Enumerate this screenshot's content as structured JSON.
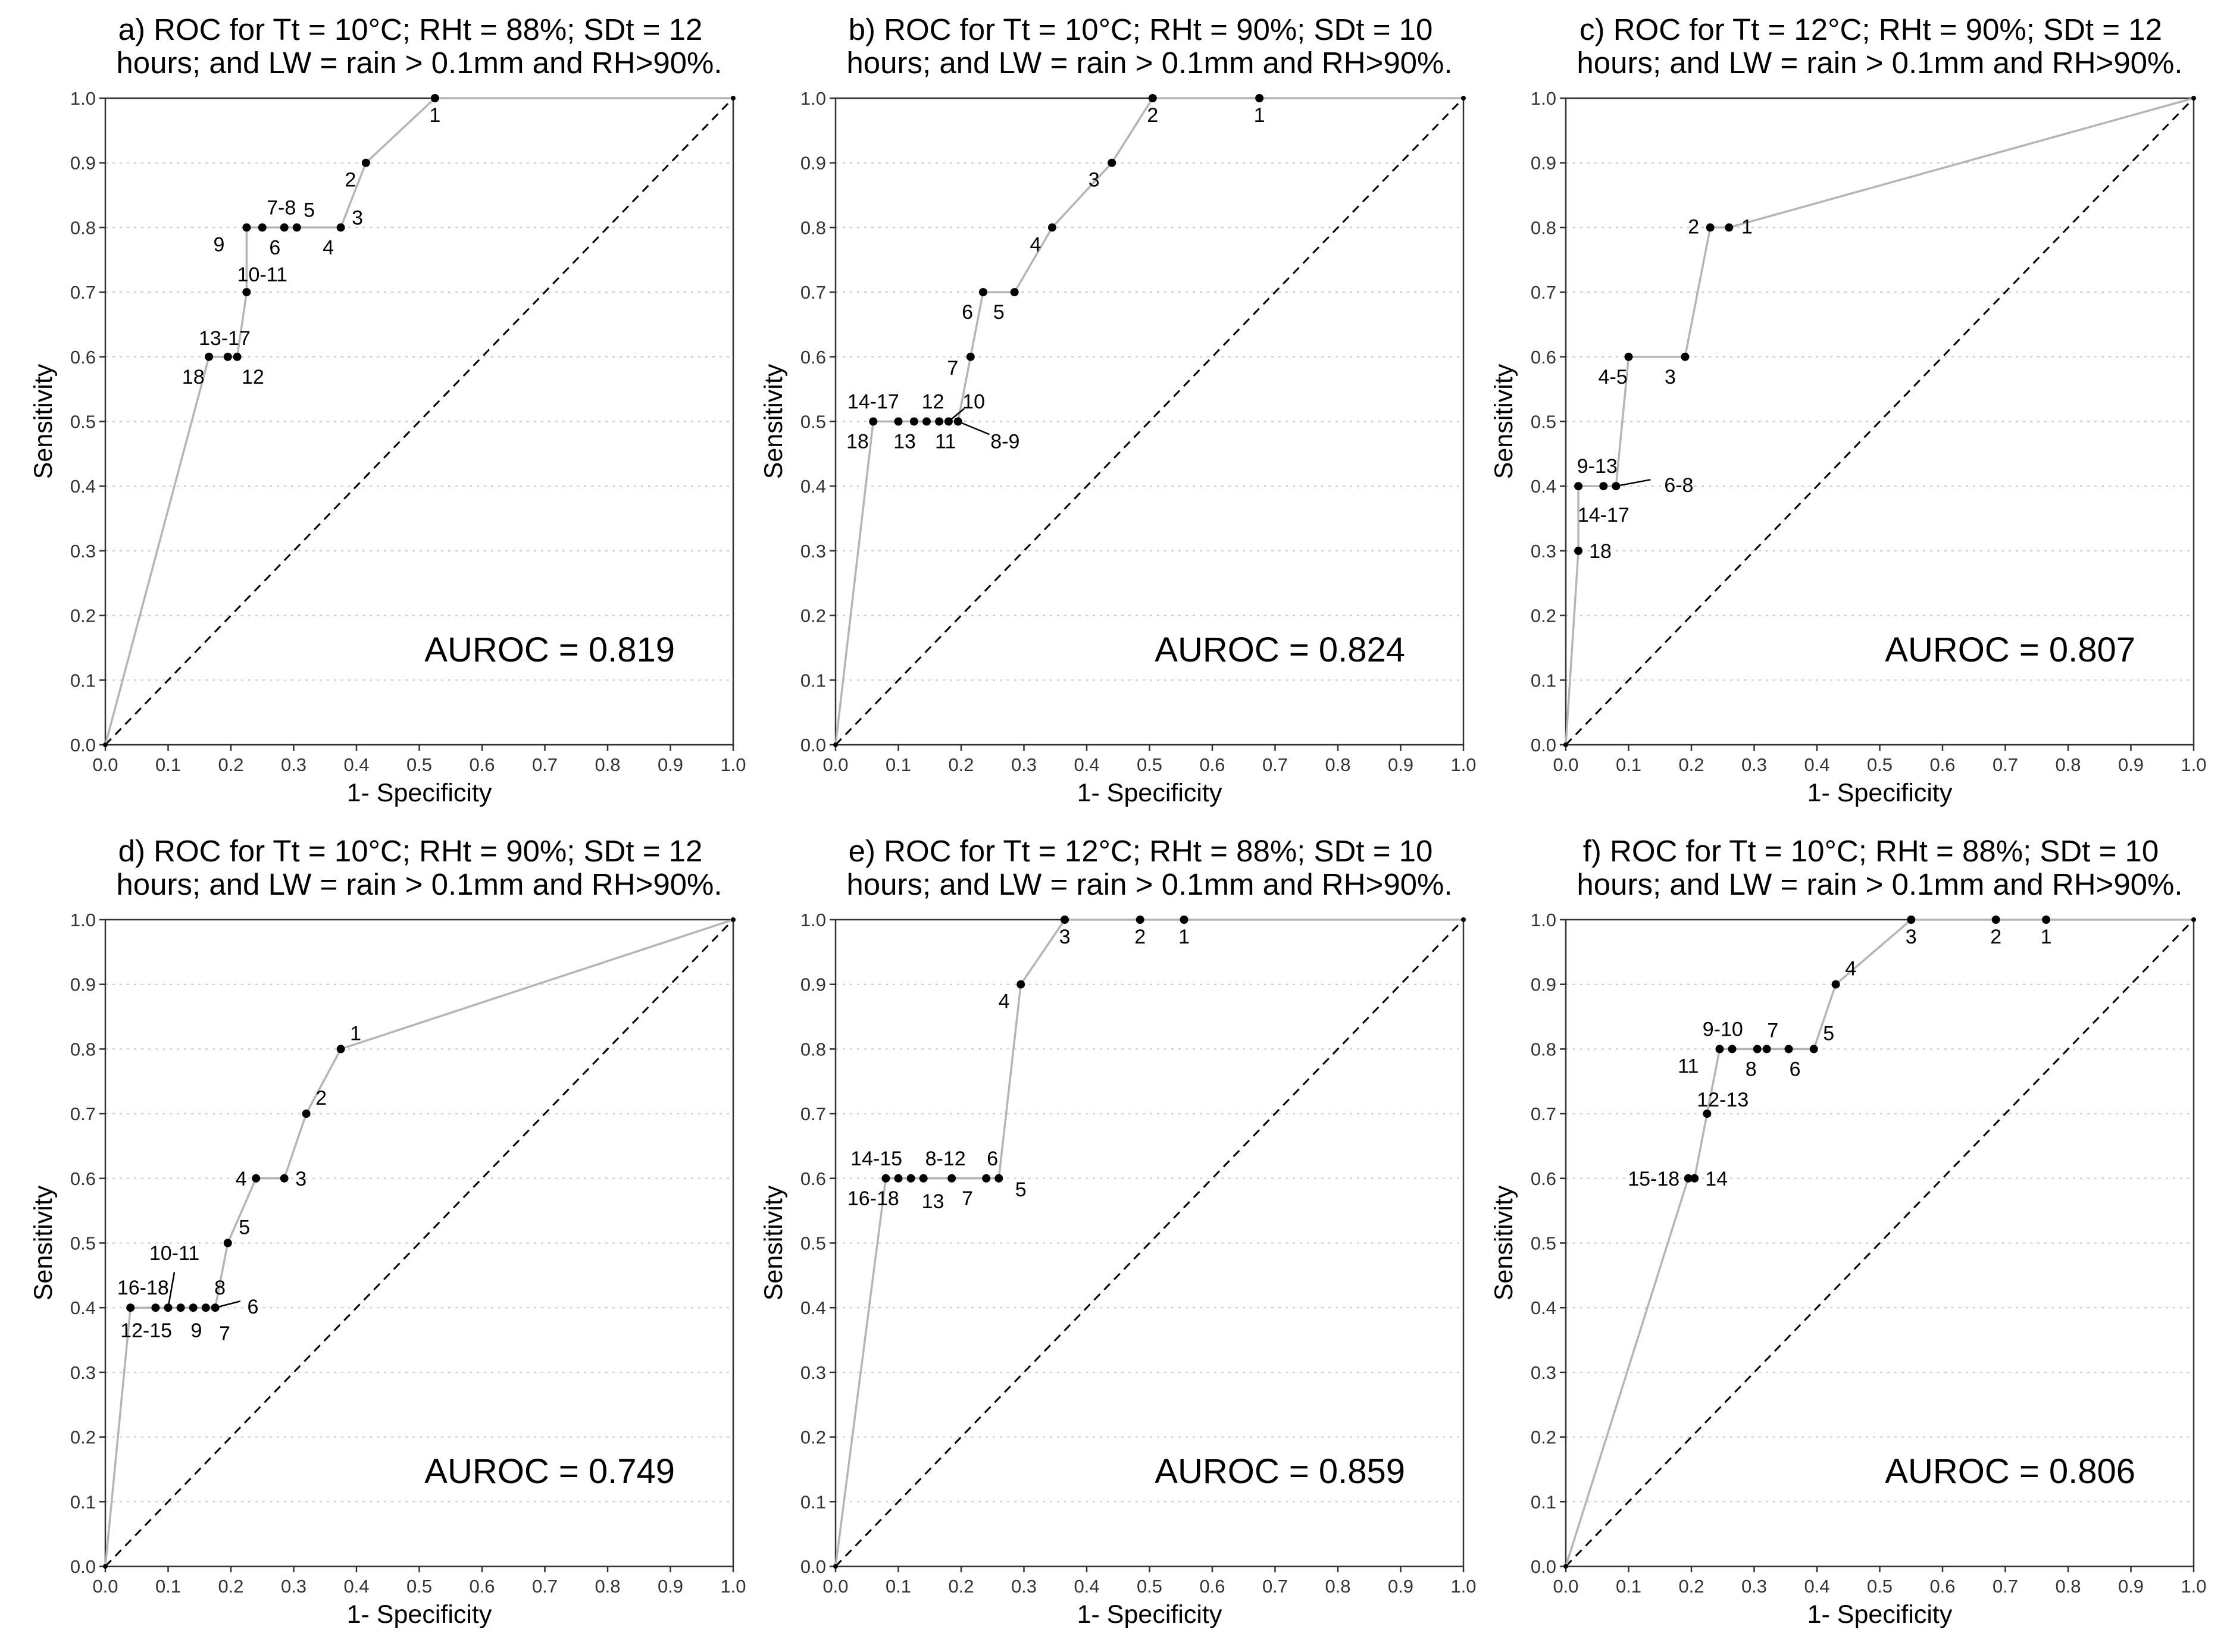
{
  "chart_data": [
    {
      "type": "line",
      "panel": "a",
      "title_line1": "a) ROC for Tt = 10°C; RHt = 88%; SDt = 12",
      "title_line2": "hours; and LW = rain > 0.1mm and RH>90%.",
      "xlabel": "1- Specificity",
      "ylabel": "Sensitivity",
      "xlim": [
        0,
        1
      ],
      "ylim": [
        0,
        1
      ],
      "xticks": [
        "0.0",
        "0.1",
        "0.2",
        "0.3",
        "0.4",
        "0.5",
        "0.6",
        "0.7",
        "0.8",
        "0.9",
        "1.0"
      ],
      "yticks": [
        "0.0",
        "0.1",
        "0.2",
        "0.3",
        "0.4",
        "0.5",
        "0.6",
        "0.7",
        "0.8",
        "0.9",
        "1.0"
      ],
      "auroc_text": "AUROC = 0.819",
      "points": [
        {
          "x": 0.0,
          "y": 0.0
        },
        {
          "x": 0.165,
          "y": 0.6
        },
        {
          "x": 0.195,
          "y": 0.6
        },
        {
          "x": 0.21,
          "y": 0.6
        },
        {
          "x": 0.225,
          "y": 0.7
        },
        {
          "x": 0.225,
          "y": 0.8
        },
        {
          "x": 0.25,
          "y": 0.8
        },
        {
          "x": 0.285,
          "y": 0.8
        },
        {
          "x": 0.305,
          "y": 0.8
        },
        {
          "x": 0.375,
          "y": 0.8
        },
        {
          "x": 0.415,
          "y": 0.9
        },
        {
          "x": 0.525,
          "y": 1.0
        },
        {
          "x": 1.0,
          "y": 1.0
        }
      ],
      "labels": [
        {
          "text": "1",
          "x": 0.525,
          "y": 1.0,
          "dx": 0,
          "dy": 40
        },
        {
          "text": "2",
          "x": 0.415,
          "y": 0.9,
          "dx": -26,
          "dy": 40
        },
        {
          "text": "3",
          "x": 0.375,
          "y": 0.8,
          "dx": 28,
          "dy": -5
        },
        {
          "text": "4",
          "x": 0.355,
          "y": 0.8,
          "dx": 0,
          "dy": 45
        },
        {
          "text": "5",
          "x": 0.32,
          "y": 0.8,
          "dx": 5,
          "dy": -18
        },
        {
          "text": "6",
          "x": 0.27,
          "y": 0.8,
          "dx": 0,
          "dy": 45
        },
        {
          "text": "7-8",
          "x": 0.285,
          "y": 0.8,
          "dx": -5,
          "dy": -22
        },
        {
          "text": "9",
          "x": 0.2,
          "y": 0.8,
          "dx": -20,
          "dy": 40
        },
        {
          "text": "10-11",
          "x": 0.25,
          "y": 0.7,
          "dx": 0,
          "dy": -18
        },
        {
          "text": "13-17",
          "x": 0.19,
          "y": 0.6,
          "dx": 0,
          "dy": -20
        },
        {
          "text": "18",
          "x": 0.14,
          "y": 0.6,
          "dx": 0,
          "dy": 45
        },
        {
          "text": "12",
          "x": 0.235,
          "y": 0.6,
          "dx": 0,
          "dy": 45
        }
      ],
      "leaders": []
    },
    {
      "type": "line",
      "panel": "b",
      "title_line1": "b) ROC for Tt = 10°C; RHt = 90%; SDt = 10",
      "title_line2": "hours; and LW = rain > 0.1mm and RH>90%.",
      "xlabel": "1- Specificity",
      "ylabel": "Sensitivity",
      "xlim": [
        0,
        1
      ],
      "ylim": [
        0,
        1
      ],
      "xticks": [
        "0.0",
        "0.1",
        "0.2",
        "0.3",
        "0.4",
        "0.5",
        "0.6",
        "0.7",
        "0.8",
        "0.9",
        "1.0"
      ],
      "yticks": [
        "0.0",
        "0.1",
        "0.2",
        "0.3",
        "0.4",
        "0.5",
        "0.6",
        "0.7",
        "0.8",
        "0.9",
        "1.0"
      ],
      "auroc_text": "AUROC = 0.824",
      "points": [
        {
          "x": 0.0,
          "y": 0.0
        },
        {
          "x": 0.06,
          "y": 0.5
        },
        {
          "x": 0.1,
          "y": 0.5
        },
        {
          "x": 0.125,
          "y": 0.5
        },
        {
          "x": 0.145,
          "y": 0.5
        },
        {
          "x": 0.165,
          "y": 0.5
        },
        {
          "x": 0.18,
          "y": 0.5
        },
        {
          "x": 0.195,
          "y": 0.5
        },
        {
          "x": 0.215,
          "y": 0.6
        },
        {
          "x": 0.235,
          "y": 0.7
        },
        {
          "x": 0.285,
          "y": 0.7
        },
        {
          "x": 0.345,
          "y": 0.8
        },
        {
          "x": 0.44,
          "y": 0.9
        },
        {
          "x": 0.505,
          "y": 1.0
        },
        {
          "x": 0.675,
          "y": 1.0
        },
        {
          "x": 1.0,
          "y": 1.0
        }
      ],
      "labels": [
        {
          "text": "1",
          "x": 0.675,
          "y": 1.0,
          "dx": 0,
          "dy": 40
        },
        {
          "text": "2",
          "x": 0.505,
          "y": 1.0,
          "dx": 0,
          "dy": 40
        },
        {
          "text": "3",
          "x": 0.44,
          "y": 0.9,
          "dx": -30,
          "dy": 40
        },
        {
          "text": "4",
          "x": 0.345,
          "y": 0.8,
          "dx": -28,
          "dy": 40
        },
        {
          "text": "5",
          "x": 0.26,
          "y": 0.7,
          "dx": 0,
          "dy": 45
        },
        {
          "text": "6",
          "x": 0.21,
          "y": 0.7,
          "dx": 0,
          "dy": 45
        },
        {
          "text": "7",
          "x": 0.215,
          "y": 0.6,
          "dx": -30,
          "dy": 30
        },
        {
          "text": "14-17",
          "x": 0.06,
          "y": 0.5,
          "dx": 0,
          "dy": -22
        },
        {
          "text": "12",
          "x": 0.155,
          "y": 0.5,
          "dx": 0,
          "dy": -22
        },
        {
          "text": "10",
          "x": 0.22,
          "y": 0.5,
          "dx": 0,
          "dy": -22
        },
        {
          "text": "18",
          "x": 0.035,
          "y": 0.5,
          "dx": 0,
          "dy": 45
        },
        {
          "text": "13",
          "x": 0.11,
          "y": 0.5,
          "dx": 0,
          "dy": 45
        },
        {
          "text": "11",
          "x": 0.175,
          "y": 0.5,
          "dx": 0,
          "dy": 45
        },
        {
          "text": "8-9",
          "x": 0.27,
          "y": 0.5,
          "dx": 0,
          "dy": 45
        }
      ],
      "leaders": [
        {
          "x1": 0.195,
          "y1": 0.5,
          "x2": 0.245,
          "y2": 0.48
        },
        {
          "x1": 0.18,
          "y1": 0.5,
          "x2": 0.205,
          "y2": 0.52
        }
      ]
    },
    {
      "type": "line",
      "panel": "c",
      "title_line1": "c) ROC for Tt = 12°C; RHt = 90%; SDt = 12",
      "title_line2": "hours; and LW = rain > 0.1mm and RH>90%.",
      "xlabel": "1- Specificity",
      "ylabel": "Sensitivity",
      "xlim": [
        0,
        1
      ],
      "ylim": [
        0,
        1
      ],
      "xticks": [
        "0.0",
        "0.1",
        "0.2",
        "0.3",
        "0.4",
        "0.5",
        "0.6",
        "0.7",
        "0.8",
        "0.9",
        "1.0"
      ],
      "yticks": [
        "0.0",
        "0.1",
        "0.2",
        "0.3",
        "0.4",
        "0.5",
        "0.6",
        "0.7",
        "0.8",
        "0.9",
        "1.0"
      ],
      "auroc_text": "AUROC = 0.807",
      "points": [
        {
          "x": 0.0,
          "y": 0.0
        },
        {
          "x": 0.02,
          "y": 0.3
        },
        {
          "x": 0.02,
          "y": 0.4
        },
        {
          "x": 0.06,
          "y": 0.4
        },
        {
          "x": 0.08,
          "y": 0.4
        },
        {
          "x": 0.1,
          "y": 0.6
        },
        {
          "x": 0.19,
          "y": 0.6
        },
        {
          "x": 0.23,
          "y": 0.8
        },
        {
          "x": 0.26,
          "y": 0.8
        },
        {
          "x": 1.0,
          "y": 1.0
        }
      ],
      "labels": [
        {
          "text": "1",
          "x": 0.26,
          "y": 0.8,
          "dx": 30,
          "dy": 10
        },
        {
          "text": "2",
          "x": 0.23,
          "y": 0.8,
          "dx": -28,
          "dy": 10
        },
        {
          "text": "3",
          "x": 0.19,
          "y": 0.6,
          "dx": -25,
          "dy": 45
        },
        {
          "text": "4-5",
          "x": 0.075,
          "y": 0.6,
          "dx": 0,
          "dy": 45
        },
        {
          "text": "9-13",
          "x": 0.05,
          "y": 0.4,
          "dx": 0,
          "dy": -22
        },
        {
          "text": "6-8",
          "x": 0.18,
          "y": 0.4,
          "dx": 0,
          "dy": 10
        },
        {
          "text": "14-17",
          "x": 0.06,
          "y": 0.4,
          "dx": 0,
          "dy": 60
        },
        {
          "text": "18",
          "x": 0.055,
          "y": 0.3,
          "dx": 0,
          "dy": 12
        }
      ],
      "leaders": [
        {
          "x1": 0.08,
          "y1": 0.4,
          "x2": 0.135,
          "y2": 0.41
        }
      ]
    },
    {
      "type": "line",
      "panel": "d",
      "title_line1": "d) ROC for Tt = 10°C; RHt = 90%; SDt = 12",
      "title_line2": "hours; and LW = rain > 0.1mm and RH>90%.",
      "xlabel": "1- Specificity",
      "ylabel": "Sensitivity",
      "xlim": [
        0,
        1
      ],
      "ylim": [
        0,
        1
      ],
      "xticks": [
        "0.0",
        "0.1",
        "0.2",
        "0.3",
        "0.4",
        "0.5",
        "0.6",
        "0.7",
        "0.8",
        "0.9",
        "1.0"
      ],
      "yticks": [
        "0.0",
        "0.1",
        "0.2",
        "0.3",
        "0.4",
        "0.5",
        "0.6",
        "0.7",
        "0.8",
        "0.9",
        "1.0"
      ],
      "auroc_text": "AUROC = 0.749",
      "points": [
        {
          "x": 0.0,
          "y": 0.0
        },
        {
          "x": 0.04,
          "y": 0.4
        },
        {
          "x": 0.08,
          "y": 0.4
        },
        {
          "x": 0.1,
          "y": 0.4
        },
        {
          "x": 0.12,
          "y": 0.4
        },
        {
          "x": 0.14,
          "y": 0.4
        },
        {
          "x": 0.16,
          "y": 0.4
        },
        {
          "x": 0.175,
          "y": 0.4
        },
        {
          "x": 0.195,
          "y": 0.5
        },
        {
          "x": 0.24,
          "y": 0.6
        },
        {
          "x": 0.285,
          "y": 0.6
        },
        {
          "x": 0.32,
          "y": 0.7
        },
        {
          "x": 0.375,
          "y": 0.8
        },
        {
          "x": 1.0,
          "y": 1.0
        }
      ],
      "labels": [
        {
          "text": "1",
          "x": 0.375,
          "y": 0.8,
          "dx": 25,
          "dy": -15
        },
        {
          "text": "2",
          "x": 0.32,
          "y": 0.7,
          "dx": 25,
          "dy": -15
        },
        {
          "text": "3",
          "x": 0.285,
          "y": 0.6,
          "dx": 28,
          "dy": 12
        },
        {
          "text": "4",
          "x": 0.24,
          "y": 0.6,
          "dx": -25,
          "dy": 12
        },
        {
          "text": "5",
          "x": 0.195,
          "y": 0.5,
          "dx": 28,
          "dy": -15
        },
        {
          "text": "10-11",
          "x": 0.11,
          "y": 0.4,
          "dx": 0,
          "dy": -80
        },
        {
          "text": "16-18",
          "x": 0.06,
          "y": 0.4,
          "dx": 0,
          "dy": -22
        },
        {
          "text": "8",
          "x": 0.175,
          "y": 0.4,
          "dx": 8,
          "dy": -22
        },
        {
          "text": "6",
          "x": 0.235,
          "y": 0.4,
          "dx": 0,
          "dy": 10
        },
        {
          "text": "12-15",
          "x": 0.065,
          "y": 0.4,
          "dx": 0,
          "dy": 50
        },
        {
          "text": "9",
          "x": 0.145,
          "y": 0.4,
          "dx": 0,
          "dy": 50
        },
        {
          "text": "7",
          "x": 0.19,
          "y": 0.4,
          "dx": 0,
          "dy": 55
        }
      ],
      "leaders": [
        {
          "x1": 0.1,
          "y1": 0.4,
          "x2": 0.11,
          "y2": 0.455
        },
        {
          "x1": 0.175,
          "y1": 0.4,
          "x2": 0.215,
          "y2": 0.41
        }
      ]
    },
    {
      "type": "line",
      "panel": "e",
      "title_line1": "e) ROC for Tt = 12°C; RHt = 88%; SDt = 10",
      "title_line2": "hours; and LW = rain > 0.1mm and RH>90%.",
      "xlabel": "1- Specificity",
      "ylabel": "Sensitivity",
      "xlim": [
        0,
        1
      ],
      "ylim": [
        0,
        1
      ],
      "xticks": [
        "0.0",
        "0.1",
        "0.2",
        "0.3",
        "0.4",
        "0.5",
        "0.6",
        "0.7",
        "0.8",
        "0.9",
        "1.0"
      ],
      "yticks": [
        "0.0",
        "0.1",
        "0.2",
        "0.3",
        "0.4",
        "0.5",
        "0.6",
        "0.7",
        "0.8",
        "0.9",
        "1.0"
      ],
      "auroc_text": "AUROC = 0.859",
      "points": [
        {
          "x": 0.0,
          "y": 0.0
        },
        {
          "x": 0.08,
          "y": 0.6
        },
        {
          "x": 0.1,
          "y": 0.6
        },
        {
          "x": 0.12,
          "y": 0.6
        },
        {
          "x": 0.14,
          "y": 0.6
        },
        {
          "x": 0.185,
          "y": 0.6
        },
        {
          "x": 0.24,
          "y": 0.6
        },
        {
          "x": 0.26,
          "y": 0.6
        },
        {
          "x": 0.295,
          "y": 0.9
        },
        {
          "x": 0.365,
          "y": 1.0
        },
        {
          "x": 0.485,
          "y": 1.0
        },
        {
          "x": 0.555,
          "y": 1.0
        },
        {
          "x": 1.0,
          "y": 1.0
        }
      ],
      "labels": [
        {
          "text": "1",
          "x": 0.555,
          "y": 1.0,
          "dx": 0,
          "dy": 40
        },
        {
          "text": "2",
          "x": 0.485,
          "y": 1.0,
          "dx": 0,
          "dy": 40
        },
        {
          "text": "3",
          "x": 0.365,
          "y": 1.0,
          "dx": 0,
          "dy": 40
        },
        {
          "text": "4",
          "x": 0.295,
          "y": 0.9,
          "dx": -28,
          "dy": 40
        },
        {
          "text": "14-15",
          "x": 0.065,
          "y": 0.6,
          "dx": 0,
          "dy": -22
        },
        {
          "text": "8-12",
          "x": 0.175,
          "y": 0.6,
          "dx": 0,
          "dy": -22
        },
        {
          "text": "6",
          "x": 0.25,
          "y": 0.6,
          "dx": 0,
          "dy": -22
        },
        {
          "text": "16-18",
          "x": 0.06,
          "y": 0.6,
          "dx": 0,
          "dy": 45
        },
        {
          "text": "13",
          "x": 0.155,
          "y": 0.6,
          "dx": 0,
          "dy": 50
        },
        {
          "text": "7",
          "x": 0.21,
          "y": 0.6,
          "dx": 0,
          "dy": 45
        },
        {
          "text": "5",
          "x": 0.295,
          "y": 0.6,
          "dx": 0,
          "dy": 30
        }
      ],
      "leaders": []
    },
    {
      "type": "line",
      "panel": "f",
      "title_line1": "f) ROC for Tt = 10°C; RHt = 88%; SDt = 10",
      "title_line2": "hours; and LW = rain > 0.1mm and RH>90%.",
      "xlabel": "1- Specificity",
      "ylabel": "Sensitivity",
      "xlim": [
        0,
        1
      ],
      "ylim": [
        0,
        1
      ],
      "xticks": [
        "0.0",
        "0.1",
        "0.2",
        "0.3",
        "0.4",
        "0.5",
        "0.6",
        "0.7",
        "0.8",
        "0.9",
        "1.0"
      ],
      "yticks": [
        "0.0",
        "0.1",
        "0.2",
        "0.3",
        "0.4",
        "0.5",
        "0.6",
        "0.7",
        "0.8",
        "0.9",
        "1.0"
      ],
      "auroc_text": "AUROC = 0.806",
      "points": [
        {
          "x": 0.0,
          "y": 0.0
        },
        {
          "x": 0.195,
          "y": 0.6
        },
        {
          "x": 0.205,
          "y": 0.6
        },
        {
          "x": 0.225,
          "y": 0.7
        },
        {
          "x": 0.245,
          "y": 0.8
        },
        {
          "x": 0.265,
          "y": 0.8
        },
        {
          "x": 0.305,
          "y": 0.8
        },
        {
          "x": 0.32,
          "y": 0.8
        },
        {
          "x": 0.355,
          "y": 0.8
        },
        {
          "x": 0.395,
          "y": 0.8
        },
        {
          "x": 0.43,
          "y": 0.9
        },
        {
          "x": 0.55,
          "y": 1.0
        },
        {
          "x": 0.685,
          "y": 1.0
        },
        {
          "x": 0.765,
          "y": 1.0
        },
        {
          "x": 1.0,
          "y": 1.0
        }
      ],
      "labels": [
        {
          "text": "1",
          "x": 0.765,
          "y": 1.0,
          "dx": 0,
          "dy": 40
        },
        {
          "text": "2",
          "x": 0.685,
          "y": 1.0,
          "dx": 0,
          "dy": 40
        },
        {
          "text": "3",
          "x": 0.55,
          "y": 1.0,
          "dx": 0,
          "dy": 40
        },
        {
          "text": "4",
          "x": 0.43,
          "y": 0.9,
          "dx": 25,
          "dy": -15
        },
        {
          "text": "5",
          "x": 0.395,
          "y": 0.8,
          "dx": 25,
          "dy": -15
        },
        {
          "text": "7",
          "x": 0.325,
          "y": 0.8,
          "dx": 5,
          "dy": -20
        },
        {
          "text": "9-10",
          "x": 0.25,
          "y": 0.8,
          "dx": 0,
          "dy": -22
        },
        {
          "text": "11",
          "x": 0.195,
          "y": 0.8,
          "dx": 0,
          "dy": 40
        },
        {
          "text": "8",
          "x": 0.295,
          "y": 0.8,
          "dx": 0,
          "dy": 45
        },
        {
          "text": "6",
          "x": 0.365,
          "y": 0.8,
          "dx": 0,
          "dy": 45
        },
        {
          "text": "12-13",
          "x": 0.25,
          "y": 0.7,
          "dx": 0,
          "dy": -12
        },
        {
          "text": "15-18",
          "x": 0.14,
          "y": 0.6,
          "dx": 0,
          "dy": 12
        },
        {
          "text": "14",
          "x": 0.24,
          "y": 0.6,
          "dx": 0,
          "dy": 12
        }
      ],
      "leaders": []
    }
  ]
}
